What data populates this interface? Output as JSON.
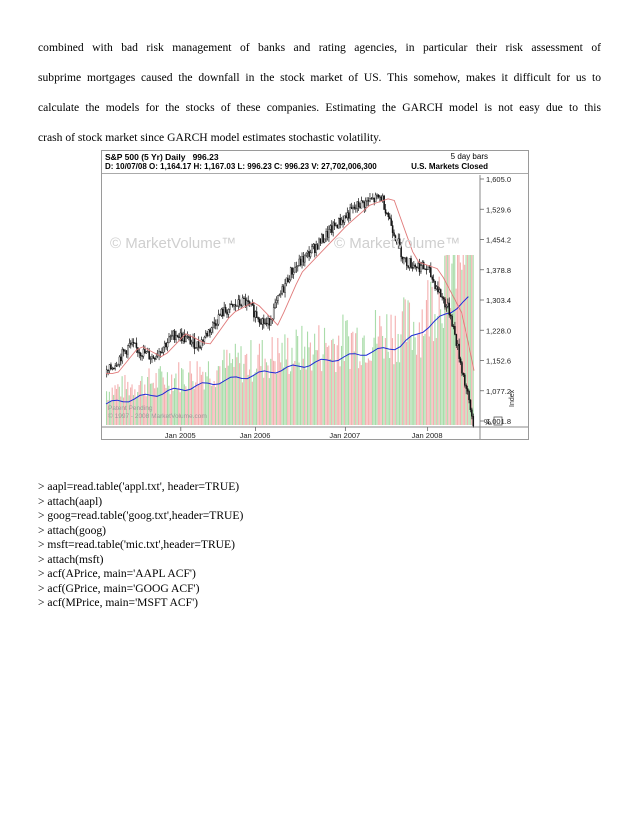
{
  "paragraph_lines": [
    "combined with bad risk management of banks and rating agencies, in particular their risk assessment of",
    "subprime mortgages caused the downfall in the stock market of US. This somehow, makes it difficult for us to",
    "calculate the models for the stocks of these companies. Estimating the GARCH model is not easy due to this",
    "crash of stock market since GARCH model estimates stochastic volatility."
  ],
  "chart": {
    "title": "S&P 500 (5 Yr) Daily",
    "price": "996.23",
    "ohlc_line": "D: 10/07/08  O: 1,164.17  H: 1,167.03  L: 996.23  C: 996.23  V: 27,702,006,300",
    "bars_note": "5 day bars",
    "market_status": "U.S. Markets Closed",
    "watermark": "© MarketVolume™",
    "footer_line1": "Patent Pending",
    "footer_line2": "© 1997 - 2008 MarketVolume.com",
    "side_label": "Index",
    "pct_label": "%",
    "colors": {
      "up": "#ffffff",
      "down": "#111111",
      "ma": "#e07a7a",
      "vol_ma": "#1f2bd6",
      "vol_green": "#a9dca9",
      "vol_red": "#f4b0b0"
    }
  },
  "chart_data": {
    "type": "line",
    "title": "S&P 500 (5 Yr) Daily",
    "x_ticks": [
      "Jan 2005",
      "Jan 2006",
      "Jan 2007",
      "Jan 2008"
    ],
    "y_ticks": [
      "1,605.0",
      "1,529.6",
      "1,454.2",
      "1,378.8",
      "1,303.4",
      "1,228.0",
      "1,152.6",
      "1,077.2",
      "1,001.8"
    ],
    "ylim": [
      1001.8,
      1605.0
    ],
    "x": [
      "2004-10",
      "2005-01",
      "2005-04",
      "2005-07",
      "2005-10",
      "2006-01",
      "2006-04",
      "2006-07",
      "2006-10",
      "2007-01",
      "2007-04",
      "2007-07",
      "2007-10",
      "2008-01",
      "2008-04",
      "2008-07",
      "2008-10"
    ],
    "series": [
      {
        "values": [
          1120,
          1190,
          1160,
          1220,
          1190,
          1270,
          1300,
          1240,
          1370,
          1430,
          1490,
          1540,
          1560,
          1400,
          1380,
          1270,
          996
        ]
      }
    ]
  },
  "code_lines": [
    "> aapl=read.table('appl.txt', header=TRUE)",
    "> attach(aapl)",
    "> goog=read.table('goog.txt',header=TRUE)",
    "> attach(goog)",
    "> msft=read.table('mic.txt',header=TRUE)",
    "> attach(msft)",
    "> acf(APrice, main='AAPL ACF')",
    "> acf(GPrice, main='GOOG ACF')",
    "> acf(MPrice, main='MSFT ACF')"
  ]
}
